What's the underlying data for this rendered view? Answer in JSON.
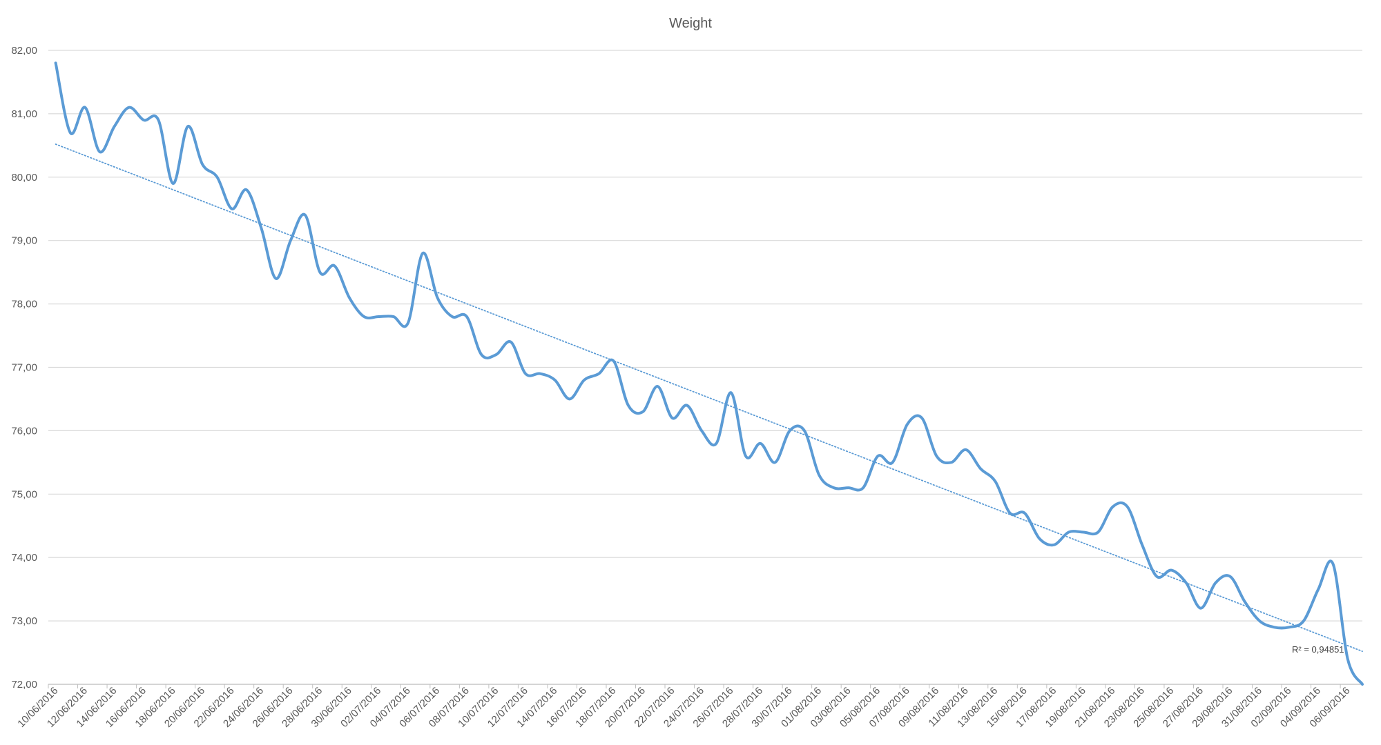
{
  "chart_data": {
    "type": "line",
    "title": "Weight",
    "xlabel": "",
    "ylabel": "",
    "ylim": [
      72,
      82
    ],
    "y_ticks": [
      72,
      73,
      74,
      75,
      76,
      77,
      78,
      79,
      80,
      81,
      82
    ],
    "y_tick_labels": [
      "72,00",
      "73,00",
      "74,00",
      "75,00",
      "76,00",
      "77,00",
      "78,00",
      "79,00",
      "80,00",
      "81,00",
      "82,00"
    ],
    "x_tick_labels": [
      "10/06/2016",
      "12/06/2016",
      "14/06/2016",
      "16/06/2016",
      "18/06/2016",
      "20/06/2016",
      "22/06/2016",
      "24/06/2016",
      "26/06/2016",
      "28/06/2016",
      "30/06/2016",
      "02/07/2016",
      "04/07/2016",
      "06/07/2016",
      "08/07/2016",
      "10/07/2016",
      "12/07/2016",
      "14/07/2016",
      "16/07/2016",
      "18/07/2016",
      "20/07/2016",
      "22/07/2016",
      "24/07/2016",
      "26/07/2016",
      "28/07/2016",
      "30/07/2016",
      "01/08/2016",
      "03/08/2016",
      "05/08/2016",
      "07/08/2016",
      "09/08/2016",
      "11/08/2016",
      "13/08/2016",
      "15/08/2016",
      "17/08/2016",
      "19/08/2016",
      "21/08/2016",
      "23/08/2016",
      "25/08/2016",
      "27/08/2016",
      "29/08/2016",
      "31/08/2016",
      "02/09/2016",
      "04/09/2016",
      "06/09/2016"
    ],
    "grid": true,
    "legend": "none",
    "series": [
      {
        "color": "#5B9BD5",
        "x_start": "10/06/2016",
        "values": [
          81.8,
          80.7,
          81.1,
          80.4,
          80.8,
          81.1,
          80.9,
          80.9,
          79.9,
          80.8,
          80.2,
          80.0,
          79.5,
          79.8,
          79.2,
          78.4,
          79.0,
          79.4,
          78.5,
          78.6,
          78.1,
          77.8,
          77.8,
          77.8,
          77.7,
          78.8,
          78.1,
          77.8,
          77.8,
          77.2,
          77.2,
          77.4,
          76.9,
          76.9,
          76.8,
          76.5,
          76.8,
          76.9,
          77.1,
          76.4,
          76.3,
          76.7,
          76.2,
          76.4,
          76.0,
          75.8,
          76.6,
          75.6,
          75.8,
          75.5,
          76.0,
          76.0,
          75.3,
          75.1,
          75.1,
          75.1,
          75.6,
          75.5,
          76.1,
          76.2,
          75.6,
          75.5,
          75.7,
          75.4,
          75.2,
          74.7,
          74.7,
          74.3,
          74.2,
          74.4,
          74.4,
          74.4,
          74.8,
          74.8,
          74.2,
          73.7,
          73.8,
          73.6,
          73.2,
          73.6,
          73.7,
          73.3,
          73.0,
          72.9,
          72.9,
          73.0,
          73.5,
          73.9,
          72.4,
          72.0
        ]
      }
    ],
    "trendline": {
      "type": "linear",
      "color": "#5B9BD5",
      "style": "dotted",
      "start_value": 80.52,
      "end_value": 72.52,
      "r_squared_label": "R² = 0,94851"
    }
  }
}
